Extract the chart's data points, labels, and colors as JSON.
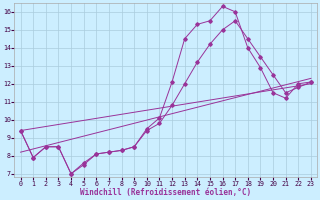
{
  "xlabel": "Windchill (Refroidissement éolien,°C)",
  "background_color": "#cceeff",
  "line_color": "#993399",
  "grid_color": "#aaccdd",
  "xlim": [
    -0.5,
    23.5
  ],
  "ylim": [
    6.8,
    16.5
  ],
  "xticks": [
    0,
    1,
    2,
    3,
    4,
    5,
    6,
    7,
    8,
    9,
    10,
    11,
    12,
    13,
    14,
    15,
    16,
    17,
    18,
    19,
    20,
    21,
    22,
    23
  ],
  "yticks": [
    7,
    8,
    9,
    10,
    11,
    12,
    13,
    14,
    15,
    16
  ],
  "curve1_x": [
    0,
    1,
    2,
    3,
    4,
    5,
    6,
    7,
    8,
    9,
    10,
    11,
    12,
    13,
    14,
    15,
    16,
    17,
    18,
    19,
    20,
    21,
    22,
    23
  ],
  "curve1_y": [
    9.4,
    7.9,
    8.5,
    8.5,
    7.0,
    7.5,
    8.1,
    8.2,
    8.3,
    8.5,
    9.5,
    10.1,
    12.1,
    14.5,
    15.3,
    15.5,
    16.3,
    16.0,
    14.0,
    12.9,
    11.5,
    11.2,
    12.0,
    12.1
  ],
  "curve2_x": [
    0,
    1,
    2,
    3,
    4,
    5,
    6,
    7,
    8,
    9,
    10,
    11,
    12,
    13,
    14,
    15,
    16,
    17,
    18,
    19,
    20,
    21,
    22,
    23
  ],
  "curve2_y": [
    9.4,
    7.9,
    8.5,
    8.5,
    7.0,
    7.6,
    8.1,
    8.2,
    8.3,
    8.5,
    9.4,
    9.8,
    10.8,
    12.0,
    13.2,
    14.2,
    15.0,
    15.5,
    14.5,
    13.5,
    12.5,
    11.5,
    11.8,
    12.1
  ],
  "trend1_x": [
    0,
    23
  ],
  "trend1_y": [
    8.2,
    12.3
  ],
  "trend2_x": [
    0,
    23
  ],
  "trend2_y": [
    9.4,
    12.0
  ],
  "xlabel_fontsize": 5.5,
  "tick_fontsize": 4.8,
  "linewidth": 0.7,
  "markersize": 1.8
}
